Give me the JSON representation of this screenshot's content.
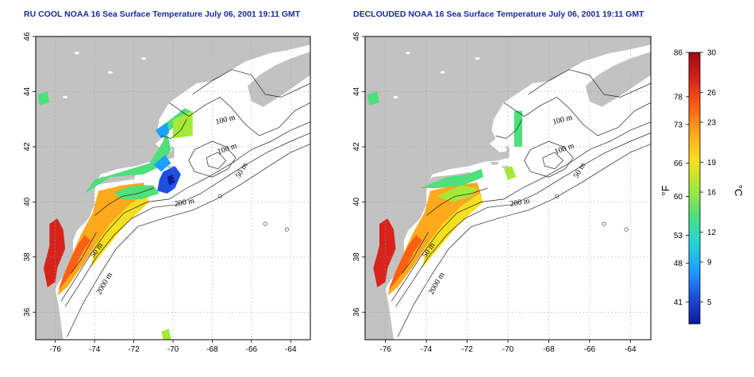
{
  "panels": [
    {
      "id": "left",
      "title": "RU COOL NOAA 16 Sea Surface Temperature July 06, 2001 19:11 GMT",
      "contour_labels": [
        "100 m",
        "100 m",
        "50 m",
        "200 m",
        "50 m",
        "2000 m"
      ]
    },
    {
      "id": "right",
      "title": "DECLOUDED NOAA 16 Sea Surface Temperature July 06, 2001 19:11 GMT",
      "contour_labels": [
        "100 m",
        "100 m",
        "50 m",
        "200 m",
        "50 m",
        "2000 m"
      ]
    }
  ],
  "axes": {
    "x_ticks": [
      "-76",
      "-74",
      "-72",
      "-70",
      "-68",
      "-66",
      "-64"
    ],
    "y_ticks": [
      "36",
      "38",
      "40",
      "42",
      "44",
      "46"
    ],
    "lon_range": [
      -77,
      -63
    ],
    "lat_range": [
      35,
      46
    ]
  },
  "colorbar": {
    "unit_left": "°F",
    "unit_right": "°C",
    "fahrenheit_ticks": [
      "86",
      "78",
      "73",
      "66",
      "60",
      "53",
      "48",
      "41"
    ],
    "celsius_ticks": [
      "30",
      "26",
      "23",
      "19",
      "16",
      "12",
      "9",
      "5"
    ],
    "colors": [
      "#0a1a9a",
      "#1e4fe0",
      "#1fa0ff",
      "#23d6d6",
      "#4ee07a",
      "#a6e83a",
      "#f5e020",
      "#ffa91c",
      "#ff5f14",
      "#d7231a",
      "#9a0d10"
    ]
  },
  "colors": {
    "land": "#c2c2c2",
    "ocean": "#ffffff",
    "title": "#1a2a9a",
    "grid": "#9c9c9c"
  }
}
